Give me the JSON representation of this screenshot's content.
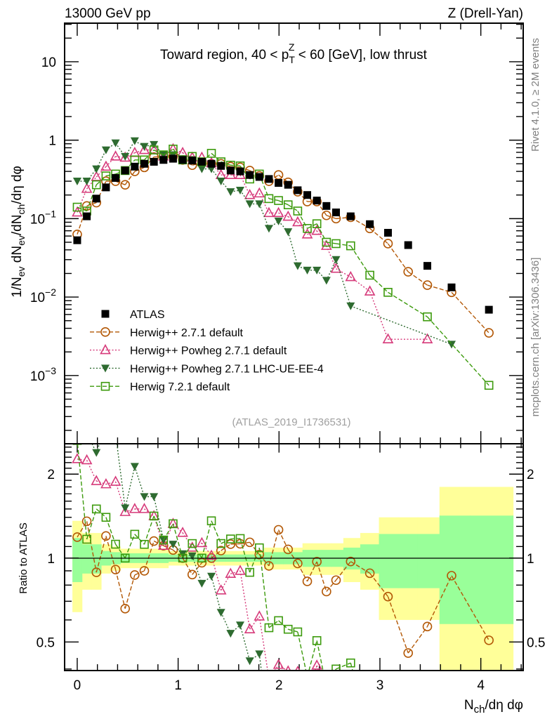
{
  "header": {
    "left": "13000 GeV pp",
    "right": "Z (Drell-Yan)"
  },
  "side": {
    "rivet": "Rivet 4.1.0, ≥ 2M events",
    "mcplots": "mcplots.cern.ch [arXiv:1306.3436]"
  },
  "chart_data": {
    "type": "scatter",
    "title_parts": [
      "Toward region, 40 < p",
      "T",
      "Z",
      " < 60 [GeV], low thrust"
    ],
    "analysis_tag": "(ATLAS_2019_I1736531)",
    "xlabel_parts": [
      "N",
      "ch",
      "/dη dφ"
    ],
    "ylabel_parts": [
      "1/N",
      "ev",
      " dN",
      "ev",
      "/dN",
      "ch",
      "/dη dφ"
    ],
    "ratio_ylabel": "Ratio to ATLAS",
    "xlim": [
      -0.125,
      4.42
    ],
    "ylim": [
      0.000135,
      31
    ],
    "yscale": "log",
    "ratio_ylim": [
      0.395,
      2.57
    ],
    "ratio_yscale": "log",
    "x_ticks": [
      "0",
      "1",
      "2",
      "3",
      "4"
    ],
    "y_ticks": [
      {
        "base": "10",
        "exp": ""
      },
      {
        "base": "1",
        "exp": ""
      },
      {
        "base": "10",
        "exp": "−1"
      },
      {
        "base": "10",
        "exp": "−2"
      },
      {
        "base": "10",
        "exp": "−3"
      }
    ],
    "y_tick_values": [
      10,
      1,
      0.1,
      0.01,
      0.001
    ],
    "ratio_ticks": [
      "2",
      "1",
      "0.5"
    ],
    "ratio_tick_values": [
      2,
      1,
      0.5
    ],
    "legend_position": "lower-left",
    "x": [
      0,
      0.095,
      0.19,
      0.285,
      0.38,
      0.475,
      0.57,
      0.665,
      0.76,
      0.855,
      0.95,
      1.045,
      1.14,
      1.235,
      1.33,
      1.425,
      1.52,
      1.615,
      1.71,
      1.805,
      1.9,
      1.995,
      2.09,
      2.185,
      2.28,
      2.375,
      2.47,
      2.565,
      2.71,
      2.9,
      3.08,
      3.28,
      3.47,
      3.71,
      4.08
    ],
    "band_total": [
      0.36,
      0.23,
      0.23,
      0.12,
      0.1,
      0.08,
      0.08,
      0.08,
      0.08,
      0.08,
      0.06,
      0.06,
      0.06,
      0.06,
      0.06,
      0.06,
      0.06,
      0.06,
      0.06,
      0.06,
      0.09,
      0.09,
      0.09,
      0.09,
      0.13,
      0.13,
      0.13,
      0.13,
      0.18,
      0.23,
      0.4,
      0.4,
      0.4,
      0.8,
      0.8
    ],
    "band_stat": [
      0.18,
      0.12,
      0.12,
      0.06,
      0.05,
      0.04,
      0.04,
      0.04,
      0.04,
      0.04,
      0.03,
      0.03,
      0.03,
      0.03,
      0.03,
      0.03,
      0.03,
      0.03,
      0.03,
      0.03,
      0.05,
      0.05,
      0.05,
      0.05,
      0.07,
      0.07,
      0.07,
      0.07,
      0.09,
      0.12,
      0.22,
      0.22,
      0.22,
      0.42,
      0.42
    ],
    "series": [
      {
        "name": "ATLAS",
        "marker": "square-filled",
        "color": "#000000",
        "line": "none",
        "values": [
          0.053,
          0.107,
          0.18,
          0.25,
          0.33,
          0.41,
          0.46,
          0.5,
          0.53,
          0.56,
          0.58,
          0.56,
          0.55,
          0.53,
          0.5,
          0.47,
          0.41,
          0.4,
          0.36,
          0.34,
          0.32,
          0.285,
          0.27,
          0.23,
          0.2,
          0.17,
          0.145,
          0.12,
          0.107,
          0.085,
          0.066,
          0.046,
          0.025,
          0.0133,
          0.0069
        ]
      },
      {
        "name": "Herwig++ 2.7.1 default",
        "marker": "circle-open",
        "color": "#b35806",
        "line": "dashed",
        "values": [
          0.063,
          0.145,
          0.16,
          0.3,
          0.3,
          0.27,
          0.4,
          0.45,
          0.61,
          0.62,
          0.62,
          0.56,
          0.48,
          0.51,
          0.5,
          0.5,
          0.46,
          0.45,
          0.41,
          0.35,
          0.3,
          0.36,
          0.29,
          0.22,
          0.165,
          0.165,
          0.11,
          0.1,
          0.104,
          0.075,
          0.048,
          0.021,
          0.0142,
          0.0115,
          0.0035
        ]
      },
      {
        "name": "Herwig++ Powheg 2.7.1 default",
        "marker": "triangle-up-open",
        "color": "#d63a7a",
        "line": "dotted",
        "values": [
          0.12,
          0.24,
          0.34,
          0.46,
          0.62,
          0.6,
          0.69,
          0.75,
          0.75,
          0.62,
          0.77,
          0.69,
          0.6,
          0.6,
          0.51,
          0.36,
          0.36,
          0.36,
          0.2,
          0.21,
          0.118,
          0.118,
          0.106,
          0.09,
          0.063,
          0.07,
          0.045,
          0.023,
          0.018,
          0.0118,
          0.0029,
          null,
          0.0029,
          null,
          null
        ]
      },
      {
        "name": "Herwig++ Powheg 2.7.1 LHC-UE-EE-4",
        "marker": "triangle-down-filled",
        "color": "#2e6b30",
        "line": "dotted",
        "values": [
          0.3,
          0.3,
          0.43,
          0.75,
          0.92,
          0.62,
          0.98,
          0.83,
          0.88,
          0.65,
          0.65,
          0.58,
          0.56,
          0.43,
          0.43,
          0.3,
          0.22,
          0.23,
          0.154,
          0.154,
          0.075,
          0.093,
          0.068,
          0.025,
          0.022,
          0.022,
          0.0163,
          0.03,
          0.0077,
          null,
          null,
          null,
          null,
          0.0025,
          null
        ]
      },
      {
        "name": "Herwig 7.2.1 default",
        "marker": "square-open",
        "color": "#3c9a0c",
        "line": "dashed",
        "values": [
          0.14,
          0.125,
          0.27,
          0.35,
          0.37,
          0.41,
          0.56,
          0.56,
          0.75,
          0.65,
          0.77,
          0.56,
          0.62,
          0.53,
          0.68,
          0.53,
          0.48,
          0.47,
          0.32,
          0.37,
          0.18,
          0.17,
          0.15,
          0.125,
          0.075,
          0.086,
          0.05,
          0.048,
          0.045,
          0.019,
          0.0115,
          null,
          0.0056,
          null,
          0.00075
        ]
      }
    ],
    "band_colors": {
      "total": "#ffff99",
      "stat": "#99ff99"
    }
  }
}
